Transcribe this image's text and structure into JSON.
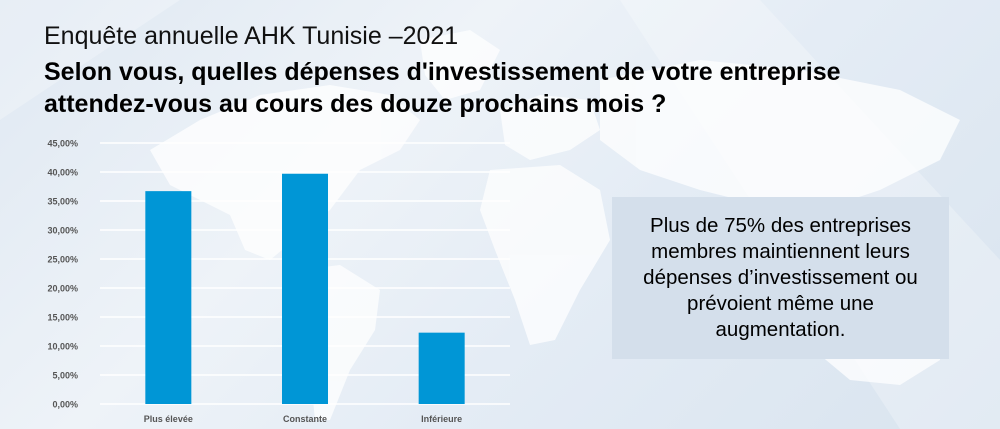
{
  "header": {
    "subtitle": "Enquête annuelle AHK Tunisie –2021",
    "title": "Selon vous, quelles dépenses d'investissement de votre entreprise attendez-vous au cours des douze prochains mois ?"
  },
  "callout": {
    "text": "Plus de 75% des entreprises membres maintiennent leurs dépenses d’investissement ou prévoient même une augmentation."
  },
  "colors": {
    "bar": "#0096d6",
    "grid": "#ffffff",
    "tick_text": "#555555"
  },
  "chart_data": {
    "type": "bar",
    "categories": [
      "Plus élevée",
      "Constante",
      "Inférieure"
    ],
    "values": [
      36.7,
      39.7,
      12.3
    ],
    "ylim": [
      0,
      45
    ],
    "yticks": [
      0,
      5,
      10,
      15,
      20,
      25,
      30,
      35,
      40,
      45
    ],
    "ytick_labels": [
      "0,00%",
      "5,00%",
      "10,00%",
      "15,00%",
      "20,00%",
      "25,00%",
      "30,00%",
      "35,00%",
      "40,00%",
      "45,00%"
    ],
    "grid": true,
    "title": "",
    "xlabel": "",
    "ylabel": ""
  }
}
